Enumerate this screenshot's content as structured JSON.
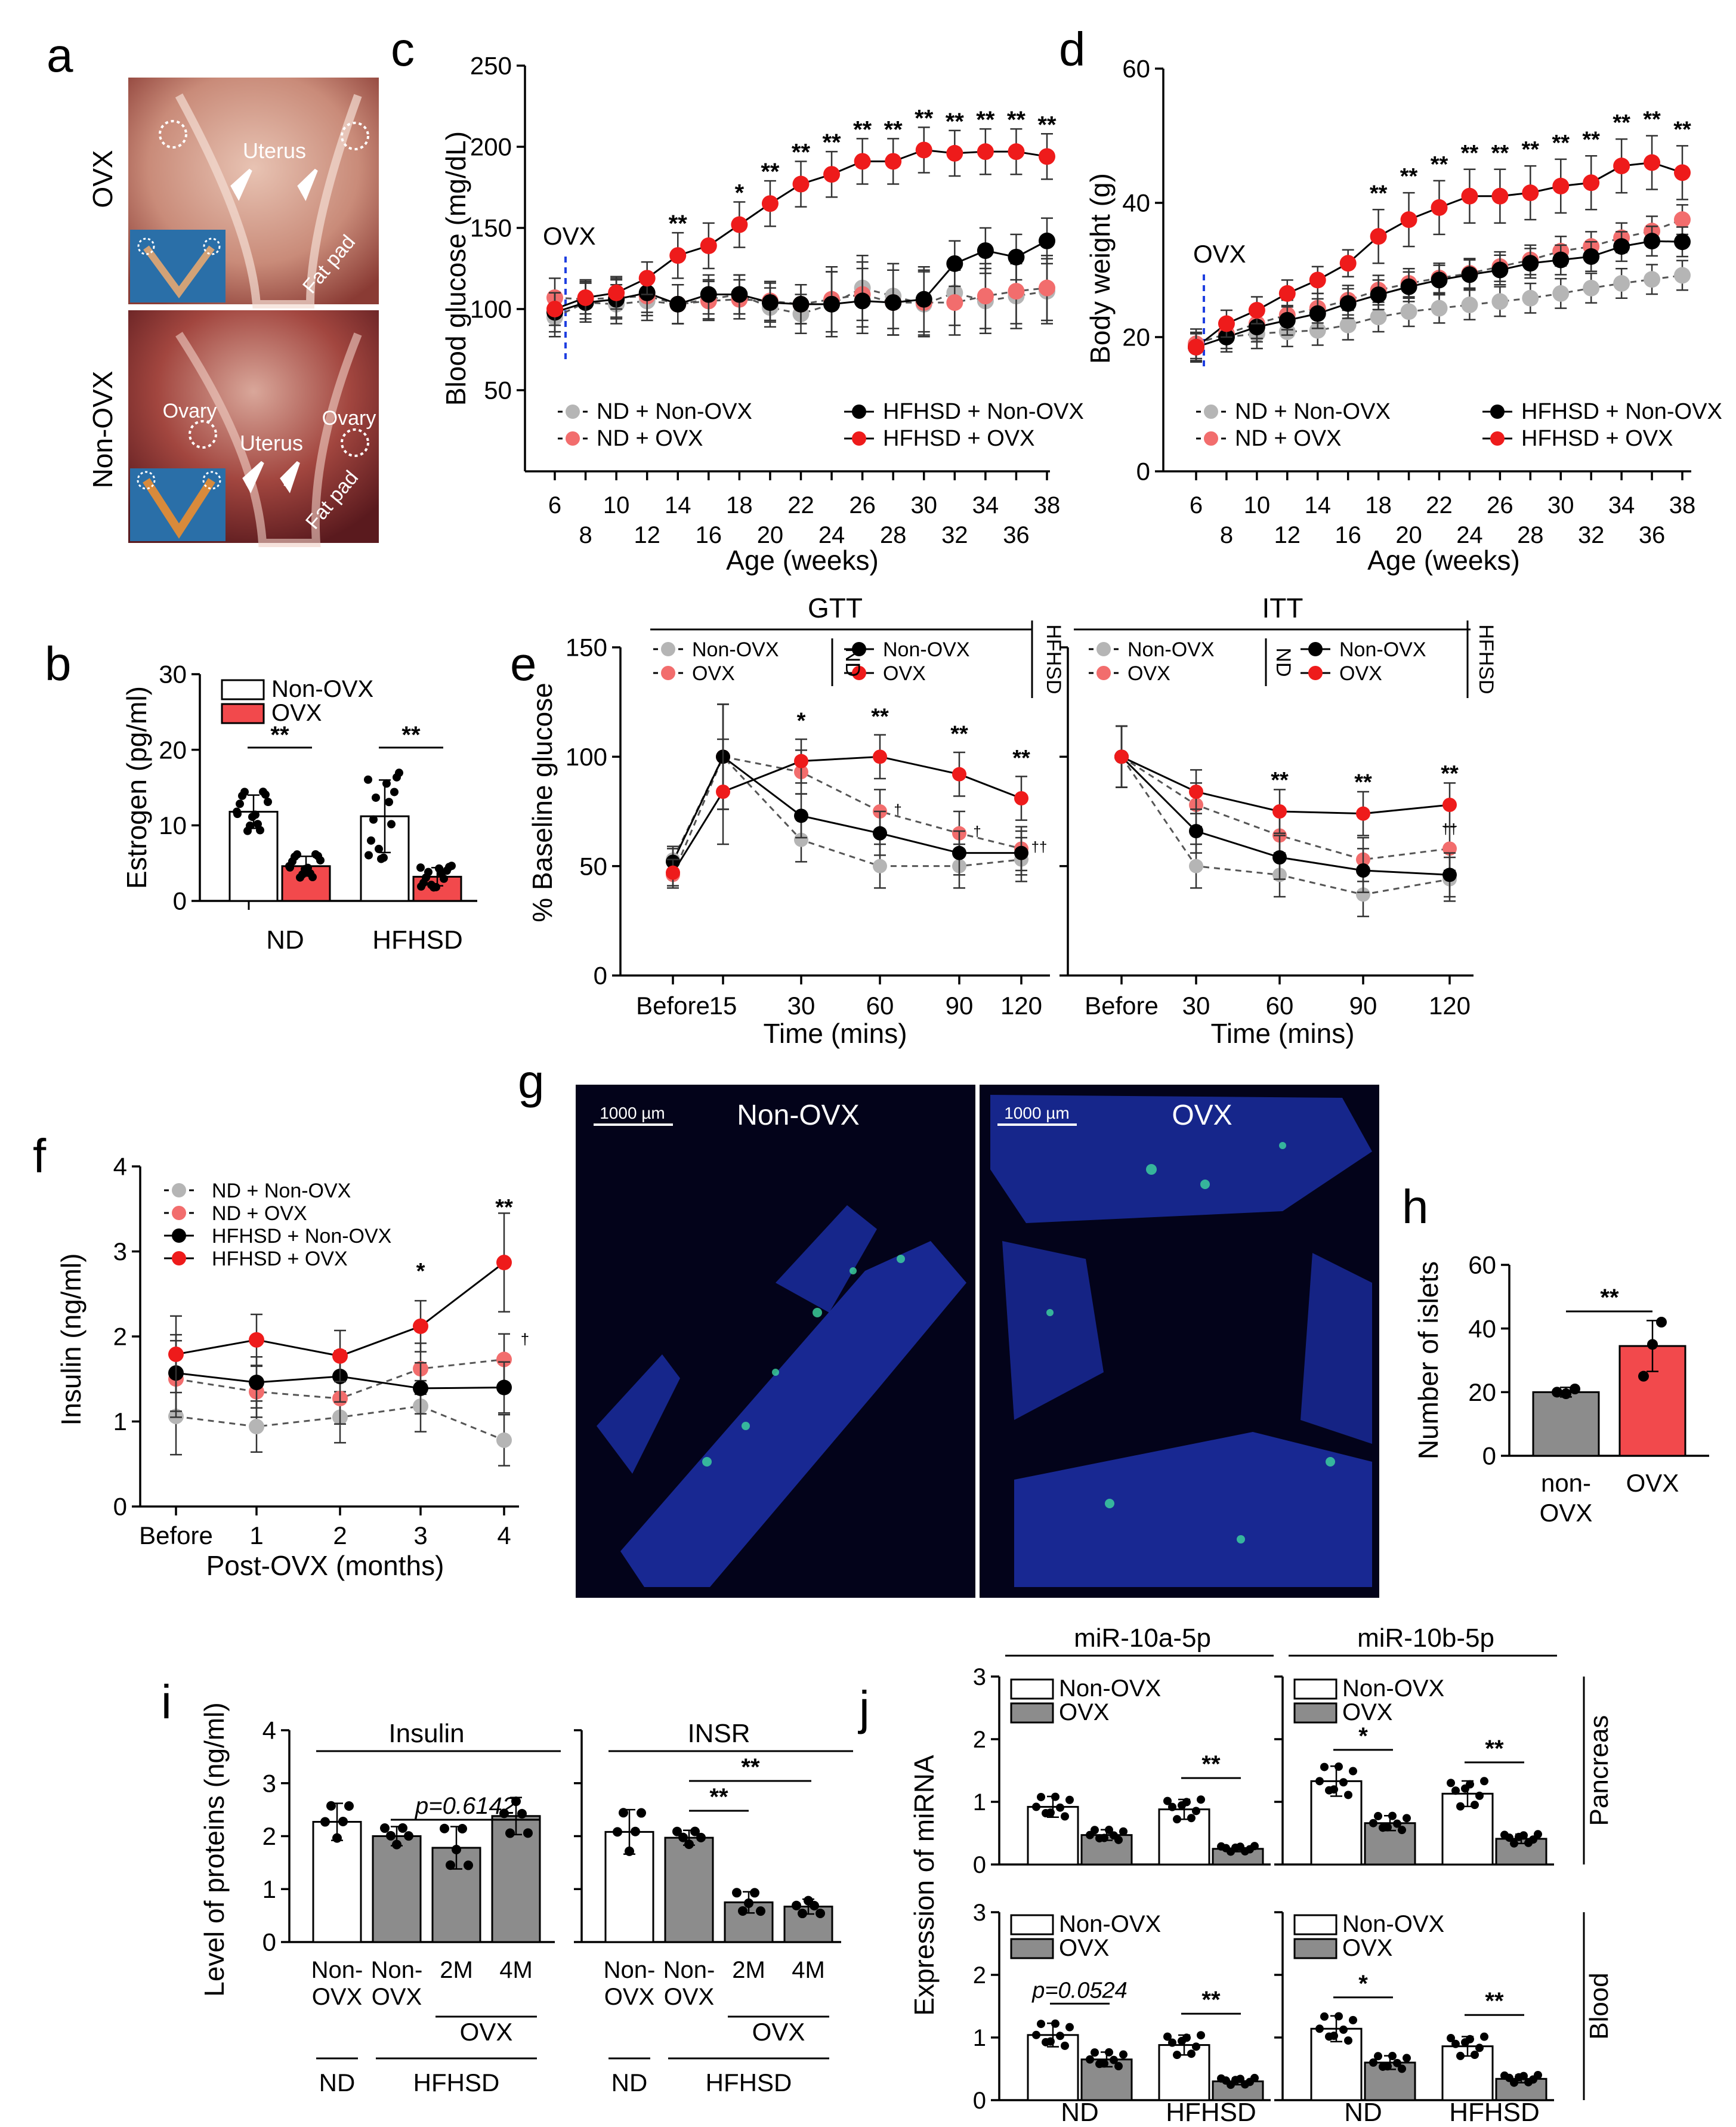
{
  "colors": {
    "gray": "#b5b5b5",
    "pink": "#f26d6d",
    "black": "#000000",
    "red": "#ee1b1b",
    "barRed": "#f2494c",
    "barGray": "#8c8c8c",
    "barWhite": "#ffffff",
    "panelG": "#03031a"
  },
  "panel_letters": {
    "a": "a",
    "b": "b",
    "c": "c",
    "d": "d",
    "e": "e",
    "f": "f",
    "g": "g",
    "h": "h",
    "i": "i",
    "j": "j"
  },
  "panel_a": {
    "top_label": "OVX",
    "bottom_label": "Non-OVX",
    "uterus": "Uterus",
    "fat_pad": "Fat pad",
    "ovary": "Ovary"
  },
  "panel_g": {
    "left_title": "Non-OVX",
    "right_title": "OVX",
    "scale_bar": "1000 µm"
  },
  "sig": {
    "one": "*",
    "two": "**",
    "dagger": "†",
    "ddagger": "††",
    "p_i": "p=0.6142",
    "p_j": "p=0.0524"
  },
  "chart_data": [
    {
      "id": "b",
      "type": "bar",
      "categories": [
        "ND",
        "HFHSD"
      ],
      "ylabel": "Estrogen (pg/ml)",
      "ylim": [
        0,
        30
      ],
      "yticks": [
        0,
        10,
        20,
        30
      ],
      "legend": [
        "Non-OVX",
        "OVX"
      ],
      "series": [
        {
          "name": "Non-OVX",
          "values": [
            11.8,
            11.2
          ],
          "err": [
            2.2,
            4.8
          ]
        },
        {
          "name": "OVX",
          "values": [
            4.6,
            3.2
          ],
          "err": [
            1.3,
            1.2
          ]
        }
      ],
      "annotations": [
        "**",
        "**"
      ]
    },
    {
      "id": "c",
      "type": "line",
      "xlabel": "Age (weeks)",
      "ylabel": "Blood glucose (mg/dL)",
      "ylim": [
        0,
        250
      ],
      "yticks": [
        50,
        100,
        150,
        200,
        250
      ],
      "x": [
        6,
        8,
        10,
        12,
        14,
        16,
        18,
        20,
        22,
        24,
        26,
        28,
        30,
        32,
        34,
        36,
        38
      ],
      "annotation": "OVX",
      "legend": [
        "ND + Non-OVX",
        "ND + OVX",
        "HFHSD + Non-OVX",
        "HFHSD + OVX"
      ],
      "series": [
        {
          "name": "ND + Non-OVX",
          "values": [
            95,
            104,
            103,
            105,
            103,
            106,
            109,
            101,
            97,
            103,
            113,
            108,
            103,
            110,
            105,
            108,
            111
          ]
        },
        {
          "name": "ND + OVX",
          "values": [
            107,
            106,
            107,
            108,
            103,
            105,
            106,
            105,
            103,
            106,
            109,
            104,
            104,
            104,
            108,
            111,
            113
          ]
        },
        {
          "name": "HFHSD + Non-OVX",
          "values": [
            98,
            104,
            106,
            110,
            103,
            109,
            109,
            104,
            103,
            103,
            105,
            104,
            106,
            128,
            136,
            132,
            142
          ]
        },
        {
          "name": "HFHSD + OVX",
          "values": [
            100,
            107,
            110,
            119,
            133,
            139,
            152,
            165,
            177,
            183,
            191,
            191,
            198,
            196,
            197,
            197,
            194
          ]
        }
      ],
      "sig": [
        "",
        "",
        "",
        "",
        "**",
        "",
        "*",
        "**",
        "**",
        "**",
        "**",
        "**",
        "**",
        "**",
        "**",
        "**",
        "**"
      ]
    },
    {
      "id": "d",
      "type": "line",
      "xlabel": "Age (weeks)",
      "ylabel": "Body weight (g)",
      "ylim": [
        0,
        60
      ],
      "yticks": [
        0,
        20,
        40,
        60
      ],
      "x": [
        6,
        8,
        10,
        12,
        14,
        16,
        18,
        20,
        22,
        24,
        26,
        28,
        30,
        32,
        34,
        36,
        38
      ],
      "annotation": "OVX",
      "legend": [
        "ND + Non-OVX",
        "ND + OVX",
        "HFHSD + Non-OVX",
        "HFHSD + OVX"
      ],
      "series": [
        {
          "name": "ND + Non-OVX",
          "values": [
            18.5,
            20,
            20.5,
            20.8,
            21,
            21.8,
            23,
            23.8,
            24.3,
            24.8,
            25.3,
            25.8,
            26.5,
            27.3,
            28,
            28.6,
            29.2
          ]
        },
        {
          "name": "ND + OVX",
          "values": [
            19,
            20.5,
            22,
            23.3,
            24.3,
            25.5,
            27,
            28,
            28.8,
            29.5,
            30.5,
            31.5,
            32.8,
            33.5,
            34.8,
            35.8,
            37.5
          ]
        },
        {
          "name": "HFHSD + Non-OVX",
          "values": [
            18.5,
            20,
            21.5,
            22.5,
            23.5,
            25,
            26.3,
            27.5,
            28.5,
            29.3,
            30,
            31,
            31.5,
            32,
            33.5,
            34.3,
            34.2
          ]
        },
        {
          "name": "HFHSD + OVX",
          "values": [
            18.5,
            22,
            24,
            26.5,
            28.5,
            31,
            35,
            37.5,
            39.3,
            41,
            41,
            41.5,
            42.5,
            43,
            45.5,
            46,
            44.5
          ]
        }
      ],
      "sig": [
        "",
        "",
        "",
        "",
        "",
        "",
        "**",
        "**",
        "**",
        "**",
        "**",
        "**",
        "**",
        "**",
        "**",
        "**",
        "**"
      ]
    },
    {
      "id": "e_gtt",
      "type": "line",
      "title": "GTT",
      "xlabel": "Time (mins)",
      "ylabel": "% Baseline glucose",
      "ylim": [
        0,
        150
      ],
      "yticks": [
        0,
        50,
        100,
        150
      ],
      "categories": [
        "Before",
        "15",
        "30",
        "60",
        "90",
        "120"
      ],
      "group_labels": [
        "ND",
        "HFHSD"
      ],
      "legend": [
        "Non-OVX",
        "OVX",
        "Non-OVX",
        "OVX"
      ],
      "series": [
        {
          "name": "ND Non-OVX",
          "values": [
            53,
            100,
            62,
            50,
            50,
            53
          ]
        },
        {
          "name": "ND OVX",
          "values": [
            46,
            100,
            93,
            75,
            65,
            58
          ]
        },
        {
          "name": "HFHSD Non-OVX",
          "values": [
            52,
            100,
            73,
            65,
            56,
            56
          ]
        },
        {
          "name": "HFHSD OVX",
          "values": [
            47,
            84,
            98,
            100,
            92,
            81
          ]
        }
      ],
      "sig": [
        "",
        "",
        "*",
        "**",
        "**",
        "**"
      ],
      "dagger": [
        "",
        "",
        "",
        "†",
        "†",
        "††"
      ]
    },
    {
      "id": "e_itt",
      "type": "line",
      "title": "ITT",
      "xlabel": "Time (mins)",
      "ylim": [
        0,
        150
      ],
      "yticks": [
        0,
        50,
        100,
        150
      ],
      "categories": [
        "Before",
        "30",
        "60",
        "90",
        "120"
      ],
      "group_labels": [
        "ND",
        "HFHSD"
      ],
      "legend": [
        "Non-OVX",
        "OVX",
        "Non-OVX",
        "OVX"
      ],
      "series": [
        {
          "name": "ND Non-OVX",
          "values": [
            100,
            50,
            46,
            37,
            44
          ]
        },
        {
          "name": "ND OVX",
          "values": [
            100,
            78,
            64,
            53,
            58
          ]
        },
        {
          "name": "HFHSD Non-OVX",
          "values": [
            100,
            66,
            54,
            48,
            46
          ]
        },
        {
          "name": "HFHSD OVX",
          "values": [
            100,
            84,
            75,
            74,
            78
          ]
        }
      ],
      "sig": [
        "",
        "",
        "**",
        "**",
        "**"
      ],
      "dagger": [
        "",
        "",
        "",
        "",
        "††"
      ]
    },
    {
      "id": "f",
      "type": "line",
      "xlabel": "Post-OVX (months)",
      "ylabel": "Insulin (ng/ml)",
      "ylim": [
        0,
        4
      ],
      "yticks": [
        0,
        1,
        2,
        3,
        4
      ],
      "categories": [
        "Before",
        "1",
        "2",
        "3",
        "4"
      ],
      "legend": [
        "ND + Non-OVX",
        "ND + OVX",
        "HFHSD + Non-OVX",
        "HFHSD + OVX"
      ],
      "series": [
        {
          "name": "ND + Non-OVX",
          "values": [
            1.06,
            0.94,
            1.05,
            1.18,
            0.78
          ]
        },
        {
          "name": "ND + OVX",
          "values": [
            1.5,
            1.35,
            1.27,
            1.62,
            1.73
          ]
        },
        {
          "name": "HFHSD + Non-OVX",
          "values": [
            1.57,
            1.46,
            1.53,
            1.39,
            1.4
          ]
        },
        {
          "name": "HFHSD + OVX",
          "values": [
            1.79,
            1.96,
            1.77,
            2.12,
            2.87
          ]
        }
      ],
      "sig": [
        "",
        "",
        "",
        "*",
        "**"
      ],
      "dagger": [
        "",
        "",
        "",
        "",
        "†"
      ]
    },
    {
      "id": "h",
      "type": "bar",
      "categories": [
        "non-\nOVX",
        "OVX"
      ],
      "ylabel": "Number of islets",
      "ylim": [
        0,
        60
      ],
      "yticks": [
        0,
        20,
        40,
        60
      ],
      "values": [
        20,
        34.5
      ],
      "err": [
        1.5,
        8
      ],
      "points": [
        [
          20,
          19.5,
          21
        ],
        [
          25,
          35,
          42
        ]
      ],
      "annotation": "**"
    },
    {
      "id": "i",
      "type": "bar",
      "ylabel": "Level of proteins (ng/ml)",
      "ylim": [
        0,
        4
      ],
      "yticks": [
        0,
        1,
        2,
        3,
        4
      ],
      "panels": [
        {
          "title": "Insulin",
          "categories": [
            "Non-\nOVX",
            "Non-\nOVX",
            "2M",
            "4M"
          ],
          "values": [
            2.27,
            2.0,
            1.78,
            2.38
          ],
          "err": [
            0.35,
            0.18,
            0.4,
            0.35
          ]
        },
        {
          "title": "INSR",
          "categories": [
            "Non-\nOVX",
            "Non-\nOVX",
            "2M",
            "4M"
          ],
          "values": [
            2.08,
            1.97,
            0.75,
            0.67
          ],
          "err": [
            0.42,
            0.14,
            0.2,
            0.14
          ]
        }
      ],
      "group_labels": [
        "ND",
        "HFHSD",
        "OVX"
      ]
    },
    {
      "id": "j",
      "type": "bar",
      "ylabel": "Expression of miRNA",
      "ylim": [
        0,
        3
      ],
      "yticks": [
        0,
        1,
        2,
        3
      ],
      "columns": [
        "miR-10a-5p",
        "miR-10b-5p"
      ],
      "rows": [
        "Pancreas",
        "Blood"
      ],
      "categories": [
        "ND",
        "HFHSD"
      ],
      "legend": [
        "Non-OVX",
        "OVX"
      ],
      "panels": [
        {
          "col": 0,
          "row": 0,
          "values": [
            [
              0.92,
              0.47
            ],
            [
              0.88,
              0.25
            ]
          ],
          "sig": [
            "",
            "**"
          ]
        },
        {
          "col": 1,
          "row": 0,
          "values": [
            [
              1.33,
              0.66
            ],
            [
              1.13,
              0.41
            ]
          ],
          "sig": [
            "*",
            "**"
          ]
        },
        {
          "col": 0,
          "row": 1,
          "values": [
            [
              1.04,
              0.65
            ],
            [
              0.88,
              0.3
            ]
          ],
          "sig": [
            "p",
            "**"
          ]
        },
        {
          "col": 1,
          "row": 1,
          "values": [
            [
              1.14,
              0.6
            ],
            [
              0.86,
              0.34
            ]
          ],
          "sig": [
            "*",
            "**"
          ]
        }
      ]
    }
  ]
}
